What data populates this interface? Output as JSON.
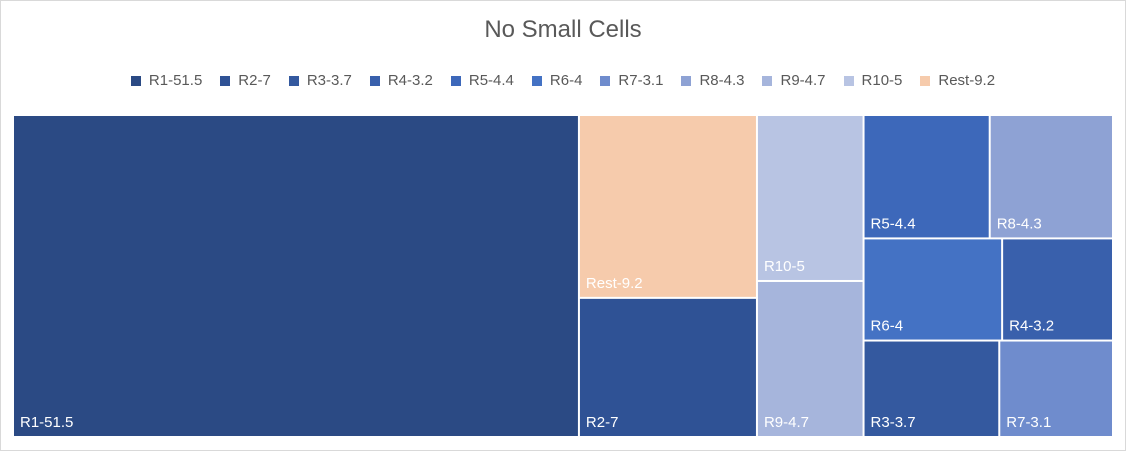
{
  "chart_data": {
    "type": "treemap",
    "title": "No Small Cells",
    "legend_position": "top",
    "items": [
      {
        "label": "R1-51.5",
        "value": 51.5,
        "color": "#2b4a84"
      },
      {
        "label": "R2-7",
        "value": 7,
        "color": "#2f5295"
      },
      {
        "label": "R3-3.7",
        "value": 3.7,
        "color": "#34599f"
      },
      {
        "label": "R4-3.2",
        "value": 3.2,
        "color": "#3960ac"
      },
      {
        "label": "R5-4.4",
        "value": 4.4,
        "color": "#3d68ba"
      },
      {
        "label": "R6-4",
        "value": 4,
        "color": "#4472c4"
      },
      {
        "label": "R7-3.1",
        "value": 3.1,
        "color": "#6f8ccd"
      },
      {
        "label": "R8-4.3",
        "value": 4.3,
        "color": "#8ea2d4"
      },
      {
        "label": "R9-4.7",
        "value": 4.7,
        "color": "#a6b5dc"
      },
      {
        "label": "R10-5",
        "value": 5,
        "color": "#b8c4e3"
      },
      {
        "label": "Rest-9.2",
        "value": 9.2,
        "color": "#f6cbac"
      }
    ]
  }
}
